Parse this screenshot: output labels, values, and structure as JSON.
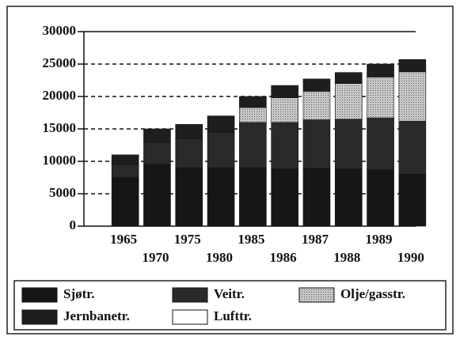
{
  "chart_data": {
    "type": "stacked_bar",
    "categories": [
      "1965",
      "1970",
      "1975",
      "1980",
      "1985",
      "1986",
      "1987",
      "1988",
      "1989",
      "1990"
    ],
    "series": [
      {
        "name": "Sjøtr.",
        "color": "#161616",
        "values": [
          7500,
          9500,
          9000,
          9000,
          9000,
          8800,
          8900,
          8800,
          8700,
          8000
        ]
      },
      {
        "name": "Veitr.",
        "color": "#2a2a2a",
        "values": [
          2000,
          3500,
          4500,
          5500,
          7000,
          7200,
          7500,
          7700,
          8000,
          8200
        ]
      },
      {
        "name": "Olje/gasstr.",
        "color": "#b8b8b8",
        "values": [
          0,
          0,
          0,
          0,
          2300,
          3800,
          4400,
          5500,
          6300,
          7600
        ]
      },
      {
        "name": "Jernbanetr.",
        "color": "#1e1e1e",
        "values": [
          1500,
          2000,
          2200,
          2500,
          1700,
          1900,
          1900,
          1700,
          2000,
          1900
        ]
      },
      {
        "name": "Lufttr.",
        "color": "#ffffff",
        "values": [
          0,
          0,
          0,
          0,
          0,
          0,
          0,
          0,
          0,
          0
        ]
      }
    ],
    "ylim": [
      0,
      30000
    ],
    "yticks": [
      0,
      5000,
      10000,
      15000,
      20000,
      25000,
      30000
    ],
    "grid": true
  }
}
